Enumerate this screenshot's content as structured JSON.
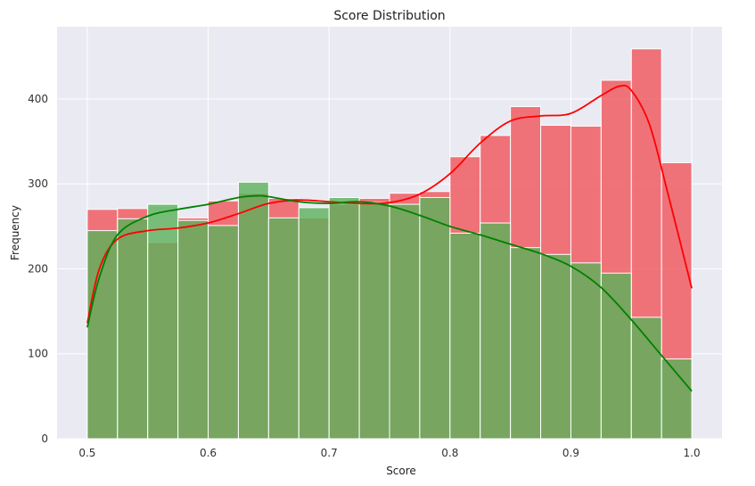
{
  "chart_data": {
    "type": "bar",
    "title": "Score Distribution",
    "xlabel": "Score",
    "ylabel": "Frequency",
    "xlim": [
      0.475,
      1.025
    ],
    "ylim": [
      0,
      485
    ],
    "xticks": [
      0.5,
      0.6,
      0.7,
      0.8,
      0.9,
      1.0
    ],
    "xtick_labels": [
      "0.5",
      "0.6",
      "0.7",
      "0.8",
      "0.9",
      "1.0"
    ],
    "yticks": [
      0,
      100,
      200,
      300,
      400
    ],
    "ytick_labels": [
      "0",
      "100",
      "200",
      "300",
      "400"
    ],
    "grid": true,
    "bin_edges": [
      0.5,
      0.525,
      0.55,
      0.575,
      0.6,
      0.625,
      0.65,
      0.675,
      0.7,
      0.725,
      0.75,
      0.775,
      0.8,
      0.825,
      0.85,
      0.875,
      0.9,
      0.925,
      0.95,
      0.975,
      1.0
    ],
    "series": [
      {
        "color": "#f0545a",
        "line_color": "#ff0000",
        "values": [
          270,
          271,
          231,
          260,
          280,
          289,
          283,
          260,
          276,
          283,
          289,
          291,
          332,
          357,
          391,
          369,
          368,
          422,
          459,
          325
        ],
        "kde": {
          "x": [
            0.5,
            0.51,
            0.525,
            0.55,
            0.575,
            0.6,
            0.625,
            0.65,
            0.675,
            0.7,
            0.725,
            0.75,
            0.775,
            0.8,
            0.825,
            0.85,
            0.875,
            0.9,
            0.925,
            0.94,
            0.95,
            0.965,
            0.98,
            1.0
          ],
          "y": [
            136,
            200,
            235,
            245,
            248,
            254,
            265,
            277,
            281,
            279,
            277,
            278,
            288,
            312,
            348,
            374,
            380,
            383,
            404,
            415,
            410,
            370,
            290,
            177
          ]
        }
      },
      {
        "color": "#5ab25a",
        "line_color": "#008000",
        "values": [
          245,
          259,
          276,
          257,
          251,
          302,
          260,
          272,
          284,
          278,
          276,
          284,
          242,
          254,
          225,
          217,
          207,
          195,
          143,
          94
        ],
        "kde": {
          "x": [
            0.5,
            0.51,
            0.525,
            0.55,
            0.575,
            0.6,
            0.625,
            0.64,
            0.65,
            0.675,
            0.7,
            0.725,
            0.75,
            0.775,
            0.8,
            0.825,
            0.85,
            0.875,
            0.9,
            0.925,
            0.95,
            0.975,
            1.0
          ],
          "y": [
            131,
            190,
            240,
            262,
            270,
            276,
            284,
            286,
            285,
            279,
            277,
            279,
            274,
            263,
            250,
            240,
            229,
            218,
            203,
            178,
            140,
            98,
            56
          ]
        }
      }
    ]
  }
}
